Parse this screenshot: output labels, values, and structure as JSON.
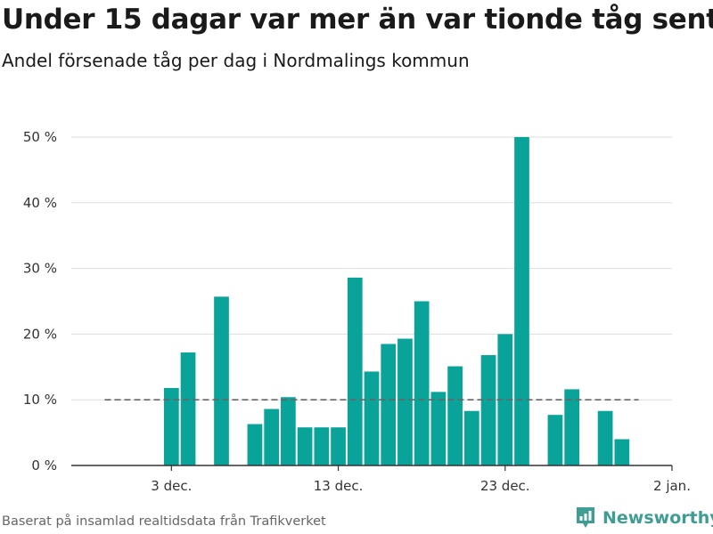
{
  "header": {
    "title": "Under 15 dagar var mer än var tionde tåg sent",
    "subtitle": "Andel försenade tåg per dag i Nordmalings kommun"
  },
  "footer": {
    "source": "Baserat på insamlad realtidsdata från Trafikverket",
    "brand": "Newsworthy",
    "brand_icon": "newsworthy-logo-icon"
  },
  "colors": {
    "bar": "#0aa39a",
    "grid": "#dddddd",
    "reference": "#666666",
    "brand": "#3f9d93"
  },
  "chart_data": {
    "type": "bar",
    "title": "Under 15 dagar var mer än var tionde tåg sent",
    "subtitle": "Andel försenade tåg per dag i Nordmalings kommun",
    "xlabel": "",
    "ylabel": "",
    "x": [
      "2019-12-03",
      "2019-12-04",
      "2019-12-05",
      "2019-12-06",
      "2019-12-07",
      "2019-12-08",
      "2019-12-09",
      "2019-12-10",
      "2019-12-11",
      "2019-12-12",
      "2019-12-13",
      "2019-12-14",
      "2019-12-15",
      "2019-12-16",
      "2019-12-17",
      "2019-12-18",
      "2019-12-19",
      "2019-12-20",
      "2019-12-21",
      "2019-12-22",
      "2019-12-23",
      "2019-12-24",
      "2019-12-25",
      "2019-12-26",
      "2019-12-27",
      "2019-12-28",
      "2019-12-29",
      "2019-12-30"
    ],
    "values": [
      11.8,
      17.2,
      0,
      25.7,
      0,
      6.3,
      8.6,
      10.4,
      5.8,
      5.8,
      5.8,
      28.6,
      14.3,
      18.5,
      19.3,
      25,
      11.2,
      15.1,
      8.3,
      16.8,
      20,
      50,
      0,
      7.7,
      11.6,
      0,
      8.3,
      4
    ],
    "ylim": [
      0,
      50
    ],
    "yticks": [
      0,
      10,
      20,
      30,
      40,
      50
    ],
    "ytick_labels": [
      "0 %",
      "10 %",
      "20 %",
      "30 %",
      "40 %",
      "50 %"
    ],
    "xticks": [
      "2019-12-03",
      "2019-12-13",
      "2019-12-23",
      "2020-01-02"
    ],
    "xtick_labels": [
      "3 dec.",
      "13 dec.",
      "23 dec.",
      "2 jan."
    ],
    "xlim": [
      "2019-11-27",
      "2020-01-02"
    ],
    "reference_line": {
      "value": 10,
      "style": "dashed",
      "from": "2019-11-29",
      "to": "2019-12-31"
    },
    "grid": true,
    "legend": "none"
  }
}
